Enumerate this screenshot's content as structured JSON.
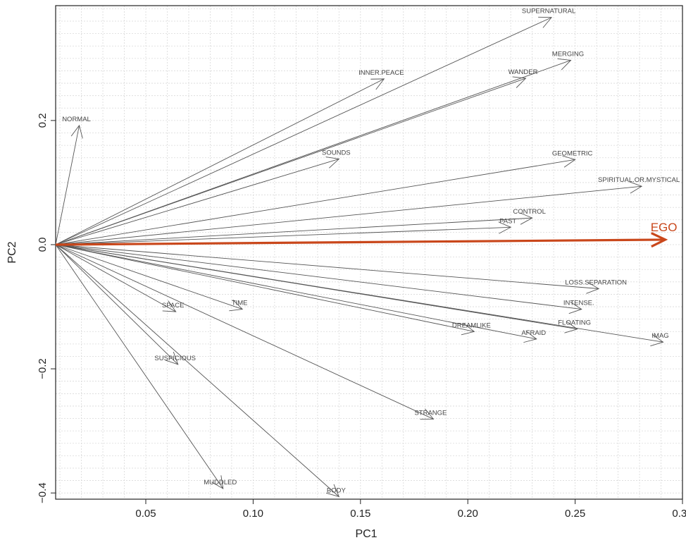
{
  "chart_data": {
    "type": "line",
    "subtype": "biplot-vectors",
    "xlabel": "PC1",
    "ylabel": "PC2",
    "xlim": [
      0.008,
      0.3
    ],
    "ylim": [
      -0.41,
      0.385
    ],
    "xticks": [
      0.05,
      0.1,
      0.15,
      0.2,
      0.25,
      0.3
    ],
    "xtick_labels": [
      "0.05",
      "0.10",
      "0.15",
      "0.20",
      "0.25",
      "0.30"
    ],
    "yticks": [
      -0.4,
      -0.2,
      0.0,
      0.2
    ],
    "ytick_labels": [
      "−0.4",
      "−0.2",
      "0.0",
      "0.2"
    ],
    "grid": true,
    "origin": [
      0.008,
      0.0
    ],
    "vectors": [
      {
        "label": "NORMAL",
        "x": 0.019,
        "y": 0.192
      },
      {
        "label": "SUPERNATURAL",
        "x": 0.239,
        "y": 0.366
      },
      {
        "label": "MERGING",
        "x": 0.248,
        "y": 0.297
      },
      {
        "label": "INNER.PEACE",
        "x": 0.161,
        "y": 0.267
      },
      {
        "label": "WANDER",
        "x": 0.227,
        "y": 0.268
      },
      {
        "label": "SOUNDS",
        "x": 0.14,
        "y": 0.138
      },
      {
        "label": "GEOMETRIC",
        "x": 0.25,
        "y": 0.137
      },
      {
        "label": "SPIRITUAL.OR.MYSTICAL",
        "x": 0.281,
        "y": 0.094
      },
      {
        "label": "CONTROL",
        "x": 0.23,
        "y": 0.043
      },
      {
        "label": "PAST",
        "x": 0.22,
        "y": 0.028
      },
      {
        "label": "LOSS.SEPARATION",
        "x": 0.261,
        "y": -0.071
      },
      {
        "label": "INTENSE.",
        "x": 0.253,
        "y": -0.104
      },
      {
        "label": "FLOATING",
        "x": 0.251,
        "y": -0.136
      },
      {
        "label": "IMAG",
        "x": 0.291,
        "y": -0.157
      },
      {
        "label": "DREAMLIKE",
        "x": 0.203,
        "y": -0.14
      },
      {
        "label": "AFRAID",
        "x": 0.232,
        "y": -0.152
      },
      {
        "label": "SPACE",
        "x": 0.064,
        "y": -0.108
      },
      {
        "label": "TIME",
        "x": 0.095,
        "y": -0.104
      },
      {
        "label": "SUSPICIOUS",
        "x": 0.065,
        "y": -0.193
      },
      {
        "label": "STRANGE",
        "x": 0.184,
        "y": -0.281
      },
      {
        "label": "MUDDLED",
        "x": 0.086,
        "y": -0.393
      },
      {
        "label": "BODY",
        "x": 0.14,
        "y": -0.406
      }
    ],
    "highlight": {
      "label": "EGO",
      "x": 0.292,
      "y": 0.008,
      "color": "#c9471b"
    },
    "colors": {
      "vector": "#555555",
      "grid": "#d9d9d9",
      "ego": "#c9471b"
    }
  }
}
